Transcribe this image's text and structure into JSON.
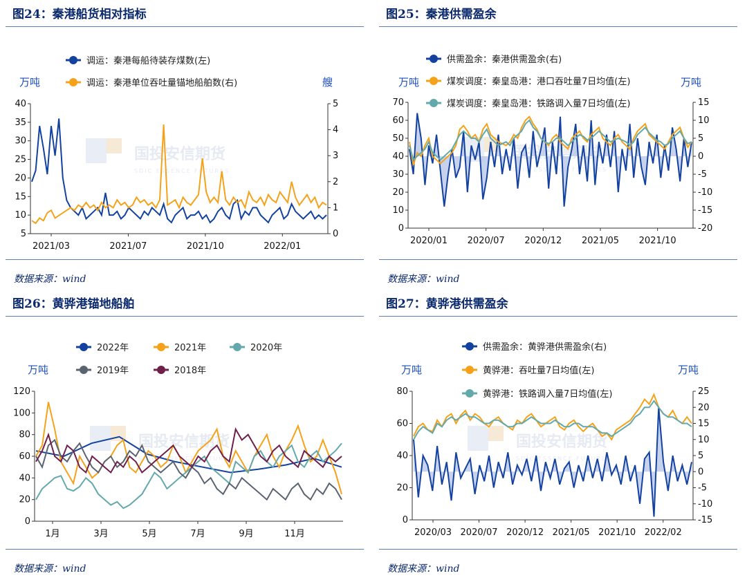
{
  "source": "数据来源：wind",
  "watermark": {
    "main": "国投安信期货",
    "sub": "SDIC ESSENCE FUTURES"
  },
  "colors": {
    "blue": "#1241a0",
    "orange": "#f5a21a",
    "teal": "#63a8ab",
    "gray": "#5a6470",
    "maroon": "#6e1f4a",
    "fill": "#b9c8e8",
    "title": "#0b2a6e"
  },
  "charts": [
    {
      "title": "图24：秦港船货相对指标",
      "chart_data": {
        "type": "line",
        "left_unit": "万吨",
        "right_unit": "艘",
        "y_left": {
          "range": [
            5,
            40
          ],
          "ticks": [
            5,
            10,
            15,
            20,
            25,
            30,
            35,
            40
          ]
        },
        "y_right": {
          "range": [
            0,
            5
          ],
          "ticks": [
            0,
            1,
            2,
            3,
            4,
            5
          ]
        },
        "x_ticks": [
          "2021/03",
          "2021/07",
          "2021/10",
          "2022/01"
        ],
        "series": [
          {
            "name": "调运：秦港每船待装存煤数(左)",
            "axis": "left",
            "color": "#1241a0",
            "values": [
              19,
              22,
              34,
              28,
              21,
              34,
              26,
              36,
              20,
              14,
              12,
              11,
              10,
              12,
              9,
              10,
              11,
              12,
              10,
              16,
              10,
              10,
              11,
              9,
              10,
              12,
              11,
              10,
              9,
              11,
              10,
              12,
              11,
              10,
              13,
              9,
              8,
              10,
              11,
              12,
              9,
              10,
              10,
              11,
              9,
              10,
              8,
              9,
              11,
              12,
              10,
              9,
              13,
              14,
              9,
              11,
              10,
              12,
              12,
              10,
              9,
              8,
              10,
              11,
              12,
              9,
              10,
              13,
              11,
              10,
              9,
              10,
              11,
              9,
              10,
              9,
              10
            ]
          },
          {
            "name": "调运：秦港单位吞吐量锚地船舶数(右)",
            "axis": "right",
            "color": "#f5a21a",
            "values": [
              0.5,
              0.4,
              0.6,
              0.5,
              0.8,
              0.9,
              0.6,
              0.7,
              0.8,
              0.9,
              1.0,
              0.9,
              1.1,
              1.0,
              1.2,
              1.0,
              1.1,
              0.9,
              1.2,
              1.0,
              1.1,
              1.0,
              1.3,
              1.1,
              1.2,
              1.0,
              1.1,
              1.4,
              1.2,
              1.3,
              1.1,
              1.2,
              1.0,
              1.3,
              4.2,
              1.1,
              1.2,
              1.3,
              1.0,
              1.4,
              1.2,
              1.1,
              1.3,
              1.5,
              2.9,
              1.6,
              1.2,
              1.4,
              1.2,
              2.4,
              1.3,
              1.1,
              1.4,
              1.2,
              1.3,
              1.0,
              1.6,
              1.3,
              1.2,
              1.4,
              1.1,
              1.5,
              1.3,
              1.2,
              1.6,
              1.4,
              1.2,
              2.0,
              1.4,
              1.1,
              1.3,
              1.5,
              1.2,
              1.4,
              1.0,
              1.2,
              1.1
            ]
          }
        ],
        "legend": [
          "调运：秦港每船待装存煤数(左)",
          "调运：秦港单位吞吐量锚地船舶数(右)"
        ]
      }
    },
    {
      "title": "图25：秦港供需盈余",
      "chart_data": {
        "type": "line",
        "left_unit": "万吨",
        "right_unit": "万吨",
        "y_left": {
          "range": [
            0,
            70
          ],
          "ticks": [
            0,
            10,
            20,
            30,
            40,
            50,
            60,
            70
          ]
        },
        "y_right": {
          "range": [
            -20,
            15
          ],
          "ticks": [
            -20,
            -15,
            -10,
            -5,
            0,
            5,
            10,
            15
          ]
        },
        "x_ticks": [
          "2020/01",
          "2020/07",
          "2020/12",
          "2021/05",
          "2021/10"
        ],
        "series": [
          {
            "name": "供需盈余：秦港供需盈余(右)",
            "axis": "right",
            "color": "#1241a0",
            "area": true,
            "values": [
              2,
              -5,
              12,
              5,
              -8,
              3,
              -2,
              6,
              -4,
              -14,
              -5,
              2,
              -6,
              -3,
              7,
              -10,
              3,
              -1,
              4,
              -12,
              -6,
              4,
              -3,
              6,
              -5,
              2,
              -4,
              5,
              -9,
              1,
              3,
              -6,
              7,
              -3,
              2,
              8,
              -9,
              4,
              -5,
              11,
              -14,
              -3,
              2,
              9,
              -5,
              3,
              -7,
              10,
              -8,
              4,
              -2,
              6,
              -3,
              7,
              -10,
              2,
              -4,
              9,
              -6,
              5,
              -3,
              -8,
              4,
              -2,
              6,
              -6,
              3,
              -4,
              8,
              2,
              -7,
              5,
              -3,
              4
            ]
          },
          {
            "name": "煤炭调度：秦皇岛港：港口吞吐量7日均值(左)",
            "axis": "left",
            "color": "#f5a21a",
            "values": [
              48,
              35,
              42,
              40,
              46,
              50,
              40,
              38,
              36,
              38,
              40,
              42,
              46,
              55,
              57,
              54,
              50,
              52,
              48,
              55,
              58,
              52,
              50,
              48,
              47,
              46,
              48,
              52,
              50,
              56,
              60,
              62,
              58,
              55,
              50,
              48,
              46,
              50,
              52,
              48,
              46,
              44,
              50,
              52,
              54,
              50,
              48,
              52,
              54,
              56,
              50,
              48,
              46,
              50,
              52,
              48,
              46,
              44,
              50,
              54,
              56,
              58,
              52,
              50,
              48,
              46,
              44,
              48,
              52,
              54,
              56,
              50,
              45,
              48
            ]
          },
          {
            "name": "煤炭调度：秦皇岛港：铁路调入量7日均值(左)",
            "axis": "left",
            "color": "#63a8ab",
            "values": [
              46,
              38,
              40,
              42,
              44,
              48,
              42,
              40,
              38,
              40,
              42,
              44,
              48,
              52,
              54,
              52,
              50,
              50,
              48,
              52,
              55,
              50,
              48,
              46,
              47,
              48,
              46,
              50,
              52,
              54,
              58,
              60,
              56,
              54,
              50,
              48,
              47,
              48,
              50,
              50,
              48,
              46,
              48,
              50,
              52,
              51,
              49,
              50,
              52,
              54,
              52,
              50,
              48,
              49,
              50,
              49,
              48,
              46,
              48,
              52,
              54,
              56,
              53,
              51,
              49,
              48,
              46,
              47,
              50,
              52,
              54,
              50,
              47,
              48
            ]
          }
        ],
        "legend": [
          "供需盈余：秦港供需盈余(右)",
          "煤炭调度：秦皇岛港：港口吞吐量7日均值(左)",
          "煤炭调度：秦皇岛港：铁路调入量7日均值(左)"
        ]
      }
    },
    {
      "title": "图26：黄骅港锚地船舶",
      "chart_data": {
        "type": "line",
        "left_unit": "万吨",
        "y_left": {
          "range": [
            0,
            120
          ],
          "ticks": [
            0,
            20,
            40,
            60,
            80,
            100,
            120
          ]
        },
        "x_ticks": [
          "1月",
          "3月",
          "5月",
          "7月",
          "9月",
          "11月"
        ],
        "series": [
          {
            "name": "2022年",
            "color": "#1241a0",
            "values": [
              65,
              60,
              72,
              78,
              62,
              55,
              50,
              45,
              48,
              52,
              58,
              50
            ]
          },
          {
            "name": "2021年",
            "color": "#f5a21a",
            "values": [
              60,
              70,
              110,
              85,
              55,
              45,
              35,
              60,
              50,
              40,
              45,
              55,
              60,
              70,
              75,
              50,
              45,
              55,
              65,
              60,
              50,
              55,
              70,
              60,
              45,
              55,
              65,
              70,
              75,
              85,
              60,
              50,
              65,
              55,
              45,
              60,
              70,
              80,
              60,
              50,
              65,
              75,
              88,
              70,
              55,
              60,
              75,
              60,
              45,
              25
            ]
          },
          {
            "name": "2020年",
            "color": "#63a8ab",
            "values": [
              20,
              30,
              35,
              40,
              42,
              30,
              28,
              32,
              40,
              35,
              25,
              20,
              15,
              18,
              12,
              15,
              20,
              25,
              35,
              45,
              40,
              30,
              35,
              40,
              45,
              50,
              55,
              60,
              50,
              45,
              40,
              35,
              55,
              50,
              45,
              60,
              65,
              55,
              50,
              60,
              65,
              70,
              55,
              50,
              60,
              65,
              55,
              60,
              65,
              72
            ]
          },
          {
            "name": "2019年",
            "color": "#5a6470",
            "values": [
              60,
              50,
              70,
              75,
              60,
              55,
              65,
              72,
              60,
              50,
              45,
              55,
              60,
              50,
              55,
              65,
              60,
              70,
              55,
              50,
              45,
              50,
              55,
              45,
              40,
              50,
              45,
              35,
              40,
              30,
              25,
              35,
              30,
              40,
              35,
              30,
              25,
              20,
              30,
              25,
              20,
              30,
              35,
              25,
              20,
              30,
              25,
              35,
              30,
              20
            ]
          },
          {
            "name": "2018年",
            "color": "#6e1f4a",
            "values": [
              55,
              65,
              80,
              60,
              55,
              70,
              65,
              50,
              45,
              60,
              55,
              50,
              45,
              55,
              50,
              60,
              55,
              45,
              50,
              55,
              60,
              65,
              70,
              60,
              55,
              50,
              60,
              55,
              65,
              70,
              60,
              55,
              85,
              75,
              80,
              70,
              60,
              55,
              65,
              70,
              60,
              55,
              50,
              65,
              60,
              55,
              50,
              60,
              55,
              60
            ]
          }
        ],
        "legend": [
          "2022年",
          "2021年",
          "2020年",
          "2019年",
          "2018年"
        ]
      }
    },
    {
      "title": "图27：黄骅港供需盈余",
      "chart_data": {
        "type": "line",
        "left_unit": "万吨",
        "right_unit": "万吨",
        "y_left": {
          "range": [
            0,
            80
          ],
          "ticks": [
            0,
            20,
            40,
            60,
            80
          ]
        },
        "y_right": {
          "range": [
            -15,
            25
          ],
          "ticks": [
            -15,
            -10,
            -5,
            0,
            5,
            10,
            15,
            20,
            25
          ]
        },
        "x_ticks": [
          "2020/03",
          "2020/07",
          "2020/12",
          "2021/05",
          "2021/10",
          "2022/02"
        ],
        "series": [
          {
            "name": "供需盈余：黄骅港供需盈余(右)",
            "axis": "right",
            "color": "#1241a0",
            "area": true,
            "values": [
              10,
              -8,
              5,
              2,
              -6,
              8,
              -4,
              3,
              -9,
              6,
              -2,
              1,
              4,
              -7,
              2,
              -3,
              5,
              -5,
              3,
              -2,
              6,
              -4,
              2,
              -1,
              4,
              -3,
              5,
              -6,
              3,
              -2,
              4,
              -4,
              1,
              3,
              -5,
              2,
              -3,
              5,
              -2,
              4,
              -3,
              6,
              -1,
              2,
              -4,
              5,
              -3,
              2,
              -10,
              4,
              6,
              -14,
              20,
              3,
              -6,
              5,
              -3,
              2,
              -4,
              3
            ]
          },
          {
            "name": "黄骅港：吞吐量7日均值(左)",
            "axis": "left",
            "color": "#f5a21a",
            "values": [
              52,
              58,
              60,
              56,
              55,
              62,
              58,
              64,
              66,
              60,
              65,
              68,
              62,
              66,
              64,
              60,
              58,
              62,
              64,
              60,
              58,
              56,
              62,
              60,
              64,
              66,
              62,
              58,
              60,
              62,
              64,
              58,
              56,
              60,
              62,
              58,
              55,
              58,
              60,
              56,
              52,
              54,
              50,
              56,
              58,
              60,
              62,
              66,
              70,
              75,
              72,
              78,
              70,
              66,
              64,
              68,
              62,
              60,
              64,
              60
            ]
          },
          {
            "name": "黄骅港：铁路调入量7日均值(左)",
            "axis": "left",
            "color": "#63a8ab",
            "values": [
              50,
              55,
              58,
              56,
              54,
              60,
              58,
              62,
              64,
              62,
              64,
              66,
              64,
              64,
              62,
              60,
              60,
              62,
              62,
              60,
              58,
              58,
              60,
              60,
              62,
              64,
              62,
              60,
              60,
              60,
              62,
              60,
              58,
              58,
              60,
              60,
              58,
              58,
              58,
              56,
              54,
              54,
              52,
              54,
              56,
              58,
              60,
              64,
              66,
              70,
              70,
              74,
              70,
              66,
              64,
              64,
              62,
              60,
              60,
              58
            ]
          }
        ],
        "legend": [
          "供需盈余：黄骅港供需盈余(右)",
          "黄骅港：吞吐量7日均值(左)",
          "黄骅港：铁路调入量7日均值(左)"
        ]
      }
    }
  ]
}
